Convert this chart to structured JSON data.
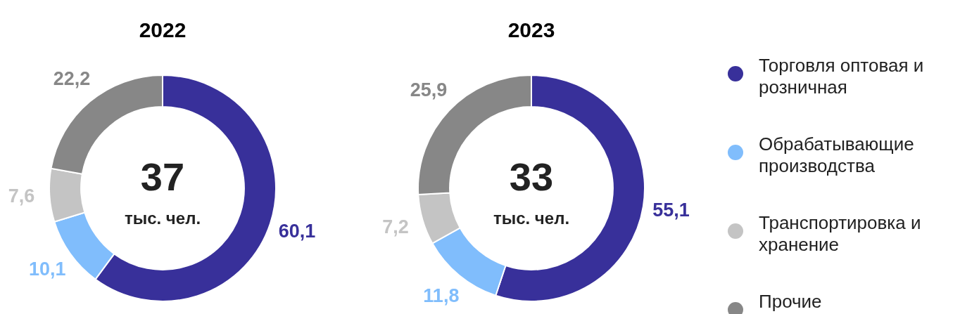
{
  "chart_data": [
    {
      "type": "donut",
      "title": "2022",
      "categories": [
        null,
        null,
        null,
        null
      ],
      "values": [
        60.1,
        10.1,
        7.6,
        22.2
      ],
      "colors": [
        "#38309a",
        "#80bdfc",
        "#c4c4c4",
        "#878787"
      ],
      "value_labels": [
        "60,1",
        "10,1",
        "7,6",
        "22,2"
      ],
      "annotations": [
        "37",
        "тыс. чел."
      ],
      "legend": false
    },
    {
      "type": "donut",
      "title": "2023",
      "categories": [
        "Торговля оптовая и розничная",
        "Обрабатывающие производства",
        "Транспортировка и хранение",
        "Прочие"
      ],
      "values": [
        55.1,
        11.8,
        7.2,
        25.9
      ],
      "colors": [
        "#38309a",
        "#80bdfc",
        "#c4c4c4",
        "#878787"
      ],
      "value_labels": [
        "55,1",
        "11,8",
        "7,2",
        "25,9"
      ],
      "annotations": [
        "33",
        "тыс. чел."
      ],
      "legend": "right"
    }
  ]
}
